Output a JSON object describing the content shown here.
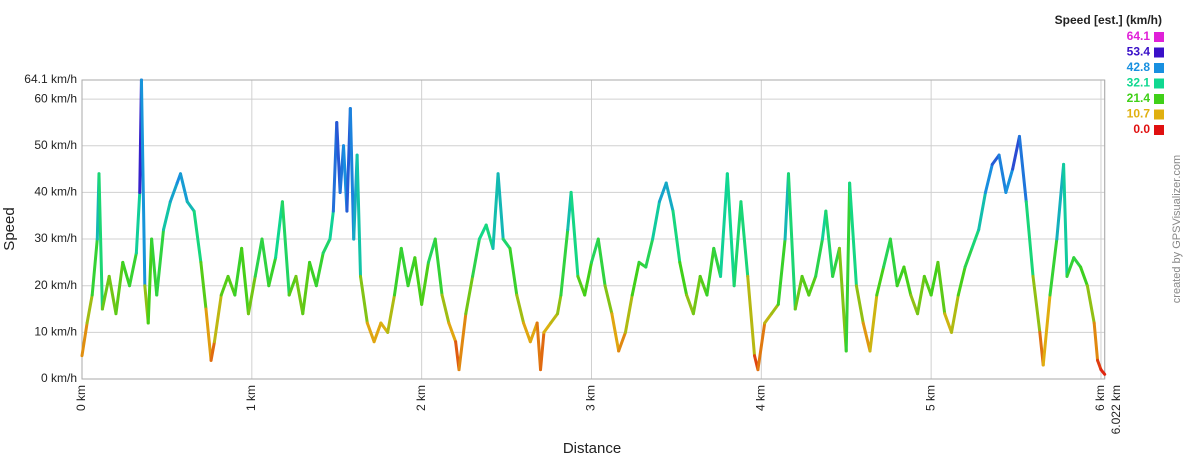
{
  "chart_data": {
    "type": "line",
    "legend_title": "Speed [est.] (km/h)",
    "y_label": "Speed",
    "x_label": "Distance",
    "watermark": "created by GPSVisualizer.com",
    "color_scale": [
      {
        "value": 64.1,
        "color": "#e020d8"
      },
      {
        "value": 53.4,
        "color": "#3a10c8"
      },
      {
        "value": 42.8,
        "color": "#1890e0"
      },
      {
        "value": 32.1,
        "color": "#10d890"
      },
      {
        "value": 21.4,
        "color": "#40d018"
      },
      {
        "value": 10.7,
        "color": "#e0b010"
      },
      {
        "value": 0.0,
        "color": "#e01010"
      }
    ],
    "legend_labels": [
      "64.1",
      "53.4",
      "42.8",
      "32.1",
      "21.4",
      "10.7",
      "0.0"
    ],
    "xlim": [
      0,
      6.022
    ],
    "ylim": [
      0,
      64.1
    ],
    "xticks": [
      {
        "value": 0,
        "label": "0 km"
      },
      {
        "value": 1,
        "label": "1 km"
      },
      {
        "value": 2,
        "label": "2 km"
      },
      {
        "value": 3,
        "label": "3 km"
      },
      {
        "value": 4,
        "label": "4 km"
      },
      {
        "value": 5,
        "label": "5 km"
      },
      {
        "value": 6,
        "label": "6 km"
      },
      {
        "value": 6.022,
        "label": "6.022 km"
      }
    ],
    "yticks": [
      {
        "value": 0,
        "label": "0 km/h"
      },
      {
        "value": 10,
        "label": "10 km/h"
      },
      {
        "value": 20,
        "label": "20 km/h"
      },
      {
        "value": 30,
        "label": "30 km/h"
      },
      {
        "value": 40,
        "label": "40 km/h"
      },
      {
        "value": 50,
        "label": "50 km/h"
      },
      {
        "value": 60,
        "label": "60 km/h"
      },
      {
        "value": 64.1,
        "label": "64.1 km/h"
      }
    ],
    "grid": true,
    "x": [
      0,
      0.03,
      0.06,
      0.09,
      0.1,
      0.12,
      0.16,
      0.2,
      0.24,
      0.28,
      0.32,
      0.34,
      0.35,
      0.37,
      0.39,
      0.41,
      0.44,
      0.48,
      0.52,
      0.56,
      0.58,
      0.62,
      0.66,
      0.7,
      0.73,
      0.76,
      0.78,
      0.82,
      0.86,
      0.9,
      0.94,
      0.98,
      1.02,
      1.06,
      1.1,
      1.14,
      1.18,
      1.22,
      1.26,
      1.3,
      1.34,
      1.38,
      1.42,
      1.46,
      1.48,
      1.5,
      1.52,
      1.54,
      1.56,
      1.58,
      1.6,
      1.62,
      1.64,
      1.68,
      1.72,
      1.76,
      1.8,
      1.84,
      1.88,
      1.92,
      1.96,
      2,
      2.04,
      2.08,
      2.12,
      2.16,
      2.2,
      2.22,
      2.26,
      2.3,
      2.34,
      2.38,
      2.42,
      2.45,
      2.48,
      2.52,
      2.56,
      2.6,
      2.64,
      2.68,
      2.7,
      2.72,
      2.76,
      2.8,
      2.82,
      2.86,
      2.88,
      2.92,
      2.96,
      3,
      3.04,
      3.08,
      3.12,
      3.16,
      3.2,
      3.24,
      3.28,
      3.32,
      3.36,
      3.4,
      3.44,
      3.48,
      3.52,
      3.56,
      3.6,
      3.64,
      3.68,
      3.72,
      3.76,
      3.8,
      3.84,
      3.88,
      3.92,
      3.96,
      3.98,
      4.02,
      4.06,
      4.1,
      4.14,
      4.16,
      4.2,
      4.24,
      4.28,
      4.32,
      4.36,
      4.38,
      4.42,
      4.46,
      4.5,
      4.52,
      4.56,
      4.6,
      4.64,
      4.68,
      4.72,
      4.76,
      4.8,
      4.84,
      4.88,
      4.92,
      4.96,
      5,
      5.04,
      5.08,
      5.12,
      5.16,
      5.2,
      5.24,
      5.28,
      5.32,
      5.36,
      5.4,
      5.44,
      5.48,
      5.52,
      5.56,
      5.6,
      5.64,
      5.66,
      5.7,
      5.74,
      5.78,
      5.8,
      5.84,
      5.88,
      5.92,
      5.96,
      5.98,
      6,
      6.022
    ],
    "values": [
      5,
      12,
      18,
      30,
      44,
      15,
      22,
      14,
      25,
      20,
      27,
      40,
      64.1,
      20,
      12,
      30,
      18,
      32,
      38,
      42,
      44,
      38,
      36,
      25,
      15,
      4,
      8,
      18,
      22,
      18,
      28,
      14,
      22,
      30,
      20,
      26,
      38,
      18,
      22,
      14,
      25,
      20,
      27,
      30,
      36,
      55,
      40,
      50,
      36,
      58,
      30,
      48,
      22,
      12,
      8,
      12,
      10,
      18,
      28,
      20,
      26,
      16,
      25,
      30,
      18,
      12,
      8,
      2,
      14,
      22,
      30,
      33,
      28,
      44,
      30,
      28,
      18,
      12,
      8,
      12,
      2,
      10,
      12,
      14,
      18,
      32,
      40,
      22,
      18,
      25,
      30,
      20,
      14,
      6,
      10,
      18,
      25,
      24,
      30,
      38,
      42,
      36,
      25,
      18,
      14,
      22,
      18,
      28,
      22,
      44,
      20,
      38,
      22,
      5,
      2,
      12,
      14,
      16,
      30,
      44,
      15,
      22,
      18,
      22,
      30,
      36,
      22,
      28,
      6,
      42,
      20,
      12,
      6,
      18,
      24,
      30,
      20,
      24,
      18,
      14,
      22,
      18,
      25,
      14,
      10,
      18,
      24,
      28,
      32,
      40,
      46,
      48,
      40,
      45,
      52,
      38,
      22,
      10,
      3,
      18,
      30,
      46,
      22,
      26,
      24,
      20,
      12,
      4,
      2,
      1
    ]
  }
}
